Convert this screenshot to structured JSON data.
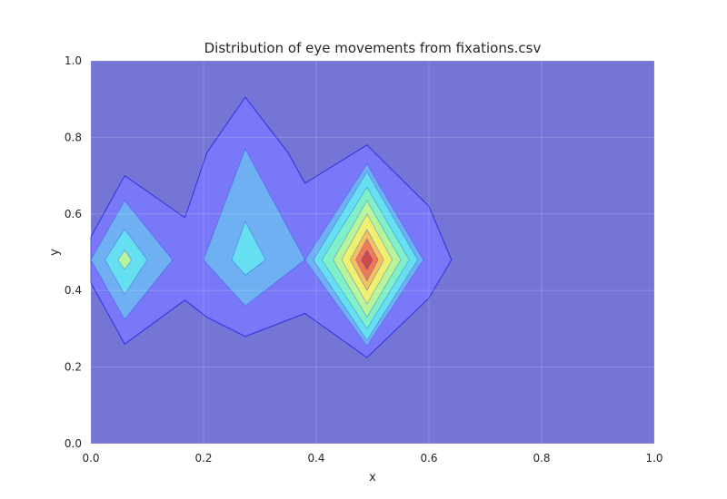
{
  "chart_data": {
    "type": "contour",
    "title": "Distribution of eye movements from fixations.csv",
    "xlabel": "x",
    "ylabel": "y",
    "xlim": [
      0.0,
      1.0
    ],
    "ylim": [
      0.0,
      1.0
    ],
    "xticks": [
      "0.0",
      "0.2",
      "0.4",
      "0.6",
      "0.8",
      "1.0"
    ],
    "yticks": [
      "0.0",
      "0.2",
      "0.4",
      "0.6",
      "0.8",
      "1.0"
    ],
    "grid": true,
    "colormap": "jet",
    "background_color": "#7575d6",
    "contour_levels": [
      {
        "level": 1,
        "color": "#7878f8",
        "polygons": [
          [
            [
              0.0,
              0.54
            ],
            [
              0.06,
              0.7
            ],
            [
              0.167,
              0.59
            ],
            [
              0.206,
              0.76
            ],
            [
              0.274,
              0.905
            ],
            [
              0.35,
              0.76
            ],
            [
              0.38,
              0.68
            ],
            [
              0.49,
              0.78
            ],
            [
              0.6,
              0.62
            ],
            [
              0.64,
              0.48
            ],
            [
              0.6,
              0.38
            ],
            [
              0.49,
              0.225
            ],
            [
              0.38,
              0.34
            ],
            [
              0.274,
              0.28
            ],
            [
              0.206,
              0.33
            ],
            [
              0.167,
              0.375
            ],
            [
              0.06,
              0.26
            ],
            [
              0.0,
              0.42
            ]
          ]
        ]
      },
      {
        "level": 2,
        "color": "#6fb0f3",
        "polygons": [
          [
            [
              0.06,
              0.635
            ],
            [
              0.145,
              0.48
            ],
            [
              0.06,
              0.325
            ],
            [
              0.0,
              0.48
            ]
          ],
          [
            [
              0.274,
              0.77
            ],
            [
              0.38,
              0.48
            ],
            [
              0.274,
              0.36
            ],
            [
              0.2,
              0.48
            ]
          ],
          [
            [
              0.49,
              0.73
            ],
            [
              0.59,
              0.48
            ],
            [
              0.49,
              0.255
            ],
            [
              0.38,
              0.48
            ]
          ]
        ]
      },
      {
        "level": 3,
        "color": "#66e0f0",
        "polygons": [
          [
            [
              0.06,
              0.56
            ],
            [
              0.1,
              0.48
            ],
            [
              0.06,
              0.39
            ],
            [
              0.025,
              0.48
            ]
          ],
          [
            [
              0.274,
              0.58
            ],
            [
              0.31,
              0.48
            ],
            [
              0.274,
              0.44
            ],
            [
              0.25,
              0.48
            ]
          ],
          [
            [
              0.49,
              0.71
            ],
            [
              0.58,
              0.48
            ],
            [
              0.49,
              0.27
            ],
            [
              0.395,
              0.48
            ]
          ]
        ]
      },
      {
        "level": 4,
        "color": "#80f0c8",
        "polygons": [
          [
            [
              0.49,
              0.67
            ],
            [
              0.565,
              0.48
            ],
            [
              0.49,
              0.3
            ],
            [
              0.41,
              0.48
            ]
          ]
        ]
      },
      {
        "level": 5,
        "color": "#b8f49a",
        "polygons": [
          [
            [
              0.06,
              0.505
            ],
            [
              0.072,
              0.48
            ],
            [
              0.06,
              0.455
            ],
            [
              0.048,
              0.48
            ]
          ],
          [
            [
              0.49,
              0.635
            ],
            [
              0.55,
              0.48
            ],
            [
              0.49,
              0.33
            ],
            [
              0.43,
              0.48
            ]
          ]
        ]
      },
      {
        "level": 6,
        "color": "#f0f070",
        "polygons": [
          [
            [
              0.49,
              0.6
            ],
            [
              0.535,
              0.48
            ],
            [
              0.49,
              0.365
            ],
            [
              0.445,
              0.48
            ]
          ]
        ]
      },
      {
        "level": 7,
        "color": "#f4c060",
        "polygons": [
          [
            [
              0.49,
              0.56
            ],
            [
              0.52,
              0.48
            ],
            [
              0.49,
              0.4
            ],
            [
              0.46,
              0.48
            ]
          ]
        ]
      },
      {
        "level": 8,
        "color": "#f07a55",
        "polygons": [
          [
            [
              0.49,
              0.535
            ],
            [
              0.51,
              0.48
            ],
            [
              0.49,
              0.425
            ],
            [
              0.47,
              0.48
            ]
          ]
        ]
      },
      {
        "level": 9,
        "color": "#cc4c4c",
        "polygons": [
          [
            [
              0.49,
              0.505
            ],
            [
              0.5,
              0.48
            ],
            [
              0.49,
              0.455
            ],
            [
              0.48,
              0.48
            ]
          ]
        ]
      }
    ]
  }
}
